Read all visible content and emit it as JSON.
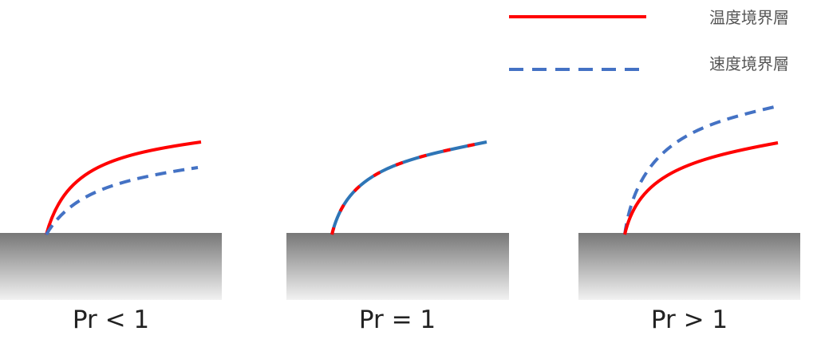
{
  "legend": {
    "thermal": {
      "label": "温度境界層",
      "color": "#ff0000",
      "style": "solid"
    },
    "velocity": {
      "label": "速度境界層",
      "color": "#4472c4",
      "style": "dashed"
    }
  },
  "panels": [
    {
      "label": "Pr < 1"
    },
    {
      "label": "Pr = 1"
    },
    {
      "label": "Pr > 1"
    }
  ],
  "colors": {
    "plate_top": "#777777",
    "plate_bottom": "#f2f2f2",
    "overlap_blue": "#2e75b6"
  }
}
